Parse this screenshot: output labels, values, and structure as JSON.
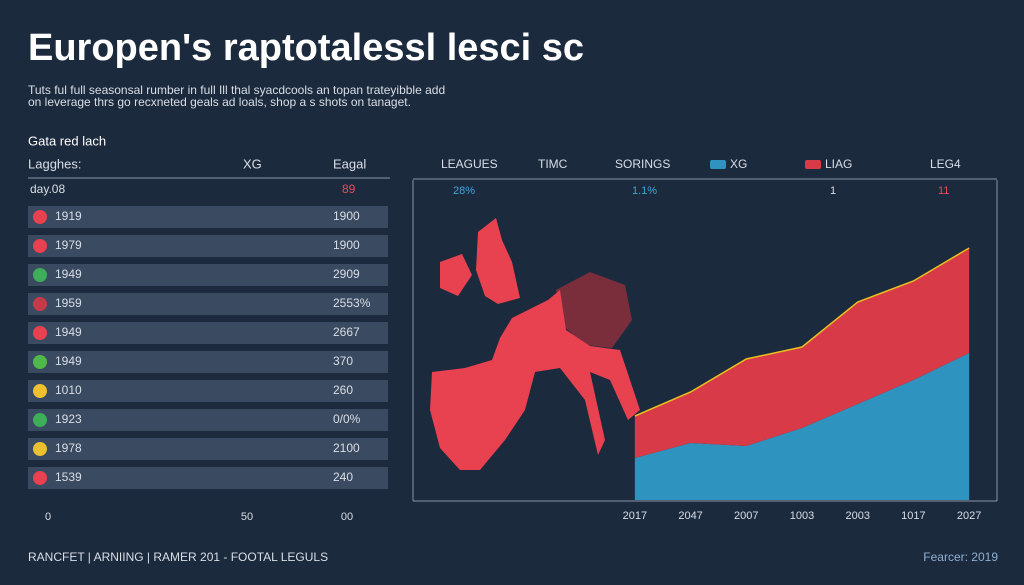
{
  "header": {
    "title": "Europen's raptotalessl lesci sc",
    "subtitle": [
      "Tuts ful full seasonsal rumber in full Ill thal syacdcools an topan trateyibble add",
      "on leverage thrs go recxneted geals ad loals, shop a s shots on tanaget."
    ],
    "section": "Gata red lach"
  },
  "table": {
    "headers": [
      "Lagghes:",
      "XG",
      "Eagal"
    ],
    "first_row": [
      "day.08",
      "89"
    ],
    "rows": [
      [
        "1919",
        "1900"
      ],
      [
        "1979",
        "1900"
      ],
      [
        "1949",
        "2909"
      ],
      [
        "1959",
        "2553%"
      ],
      [
        "1949",
        "2667"
      ],
      [
        "1949",
        "370"
      ],
      [
        "1010",
        "260"
      ],
      [
        "1923",
        "0/0%"
      ],
      [
        "1978",
        "2100"
      ],
      [
        "1539",
        "240"
      ]
    ],
    "axis": [
      "0",
      "50",
      "00"
    ]
  },
  "panel": {
    "columns": [
      "LEAGUES",
      "TIMC",
      "SORINGS"
    ],
    "extra_legend": "LEG4",
    "summary": [
      "28%",
      "1.1%",
      "1",
      "11"
    ]
  },
  "chart_data": {
    "type": "area",
    "stacked": true,
    "categories": [
      "2017",
      "2047",
      "2007",
      "1003",
      "2003",
      "1017",
      "2027"
    ],
    "series": [
      {
        "name": "XG",
        "color": "#2e93bf",
        "values": [
          14,
          19,
          18,
          24,
          32,
          40,
          49
        ]
      },
      {
        "name": "LIAG",
        "color": "#d83a48",
        "values": [
          14,
          17,
          29,
          27,
          34,
          33,
          35
        ]
      }
    ],
    "ylim": [
      0,
      100
    ]
  },
  "footer": {
    "left": "RANCFET | ARNIING | RAMER 201 - FOOTAL LEGULS",
    "right": "Fearcer: 2019"
  }
}
